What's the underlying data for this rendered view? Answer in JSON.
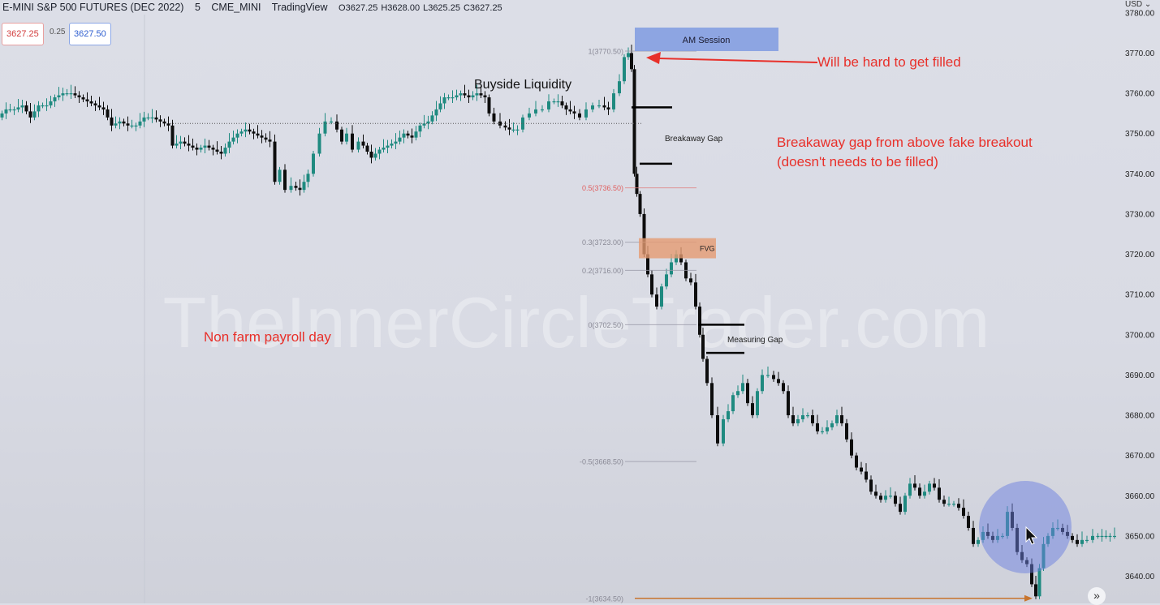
{
  "header": {
    "symbol": "E-MINI S&P 500 FUTURES (DEC 2022)",
    "interval": "5",
    "exchange": "CME_MINI",
    "source": "TradingView",
    "open": "O3627.25",
    "high": "H3628.00",
    "low": "L3625.25",
    "close": "C3627.25",
    "bid": "3627.25",
    "spread": "0.25",
    "ask": "3627.50",
    "currency": "USD"
  },
  "watermark": "TheInnerCircleTrader.com",
  "colors": {
    "up": "#1f8a80",
    "down": "#0d0d0d",
    "annotation": "#e8302a",
    "session": "#7f9be0",
    "fvg": "#e59b72",
    "fib": "#e08080",
    "target": "#c8752e"
  },
  "icons": {
    "expand": "double-chevron-right-icon",
    "cursor": "mouse-pointer-icon"
  },
  "chart_data": {
    "type": "candlestick",
    "y_axis": {
      "ticks": [
        3640,
        3650,
        3660,
        3670,
        3680,
        3690,
        3700,
        3710,
        3720,
        3730,
        3740,
        3750,
        3760,
        3770,
        3780
      ],
      "tick_labels": [
        "3640.00",
        "3650.00",
        "3660.00",
        "3670.00",
        "3680.00",
        "3690.00",
        "3700.00",
        "3710.00",
        "3720.00",
        "3730.00",
        "3740.00",
        "3750.00",
        "3760.00",
        "3770.00",
        "3780.00"
      ],
      "range": [
        3632,
        3782
      ]
    },
    "candle_path": [
      [
        0,
        3754
      ],
      [
        10,
        3756
      ],
      [
        20,
        3756
      ],
      [
        30,
        3757
      ],
      [
        40,
        3754
      ],
      [
        50,
        3757
      ],
      [
        60,
        3757
      ],
      [
        70,
        3759
      ],
      [
        80,
        3760
      ],
      [
        90,
        3760
      ],
      [
        100,
        3759
      ],
      [
        110,
        3758
      ],
      [
        120,
        3757
      ],
      [
        130,
        3756
      ],
      [
        140,
        3752
      ],
      [
        150,
        3753
      ],
      [
        160,
        3752
      ],
      [
        170,
        3752
      ],
      [
        180,
        3754
      ],
      [
        190,
        3754
      ],
      [
        200,
        3753
      ],
      [
        210,
        3752
      ],
      [
        215,
        3747
      ],
      [
        225,
        3748
      ],
      [
        235,
        3747
      ],
      [
        245,
        3746
      ],
      [
        255,
        3747
      ],
      [
        265,
        3746
      ],
      [
        275,
        3745
      ],
      [
        285,
        3748
      ],
      [
        295,
        3750
      ],
      [
        305,
        3751
      ],
      [
        315,
        3750
      ],
      [
        325,
        3749
      ],
      [
        335,
        3748
      ],
      [
        342,
        3738
      ],
      [
        347,
        3741
      ],
      [
        355,
        3736
      ],
      [
        362,
        3737
      ],
      [
        372,
        3736
      ],
      [
        382,
        3740
      ],
      [
        390,
        3745
      ],
      [
        397,
        3750
      ],
      [
        404,
        3753
      ],
      [
        412,
        3753
      ],
      [
        418,
        3751
      ],
      [
        424,
        3748
      ],
      [
        430,
        3750
      ],
      [
        438,
        3746
      ],
      [
        445,
        3748
      ],
      [
        450,
        3747
      ],
      [
        460,
        3744
      ],
      [
        470,
        3746
      ],
      [
        480,
        3747
      ],
      [
        490,
        3748
      ],
      [
        500,
        3750
      ],
      [
        510,
        3749
      ],
      [
        520,
        3752
      ],
      [
        530,
        3753
      ],
      [
        540,
        3756
      ],
      [
        550,
        3759
      ],
      [
        560,
        3759
      ],
      [
        570,
        3760
      ],
      [
        580,
        3759
      ],
      [
        590,
        3760
      ],
      [
        600,
        3759
      ],
      [
        605,
        3755
      ],
      [
        612,
        3753
      ],
      [
        620,
        3752
      ],
      [
        630,
        3751
      ],
      [
        640,
        3751
      ],
      [
        648,
        3754
      ],
      [
        656,
        3755
      ],
      [
        664,
        3756
      ],
      [
        672,
        3756
      ],
      [
        680,
        3758
      ],
      [
        690,
        3758
      ],
      [
        700,
        3756
      ],
      [
        710,
        3755
      ],
      [
        718,
        3754
      ],
      [
        726,
        3756
      ],
      [
        734,
        3757
      ],
      [
        742,
        3757
      ],
      [
        752,
        3756
      ],
      [
        760,
        3760
      ],
      [
        766,
        3763
      ],
      [
        772,
        3769
      ],
      [
        776,
        3770
      ],
      [
        780,
        3766
      ],
      [
        783,
        3740
      ],
      [
        786,
        3735
      ],
      [
        791,
        3730
      ],
      [
        796,
        3720
      ],
      [
        800,
        3715
      ],
      [
        806,
        3710
      ],
      [
        812,
        3707
      ],
      [
        818,
        3712
      ],
      [
        824,
        3715
      ],
      [
        830,
        3718
      ],
      [
        836,
        3720
      ],
      [
        842,
        3718
      ],
      [
        848,
        3714
      ],
      [
        854,
        3713
      ],
      [
        860,
        3707
      ],
      [
        864,
        3700
      ],
      [
        868,
        3694
      ],
      [
        874,
        3688
      ],
      [
        880,
        3680
      ],
      [
        888,
        3673
      ],
      [
        894,
        3679
      ],
      [
        900,
        3681
      ],
      [
        906,
        3685
      ],
      [
        912,
        3686
      ],
      [
        918,
        3688
      ],
      [
        924,
        3683
      ],
      [
        930,
        3680
      ],
      [
        936,
        3686
      ],
      [
        942,
        3690
      ],
      [
        950,
        3690
      ],
      [
        956,
        3689
      ],
      [
        962,
        3688
      ],
      [
        968,
        3686
      ],
      [
        974,
        3680
      ],
      [
        980,
        3678
      ],
      [
        986,
        3679
      ],
      [
        992,
        3680
      ],
      [
        998,
        3680
      ],
      [
        1004,
        3678
      ],
      [
        1010,
        3676
      ],
      [
        1016,
        3676
      ],
      [
        1022,
        3677
      ],
      [
        1028,
        3678
      ],
      [
        1034,
        3680
      ],
      [
        1040,
        3678
      ],
      [
        1046,
        3674
      ],
      [
        1052,
        3670
      ],
      [
        1058,
        3667
      ],
      [
        1064,
        3666
      ],
      [
        1070,
        3664
      ],
      [
        1076,
        3661
      ],
      [
        1082,
        3660
      ],
      [
        1088,
        3659
      ],
      [
        1094,
        3660
      ],
      [
        1100,
        3660
      ],
      [
        1106,
        3658
      ],
      [
        1112,
        3656
      ],
      [
        1118,
        3660
      ],
      [
        1124,
        3663
      ],
      [
        1130,
        3662
      ],
      [
        1136,
        3660
      ],
      [
        1142,
        3661
      ],
      [
        1148,
        3663
      ],
      [
        1154,
        3662
      ],
      [
        1160,
        3659
      ],
      [
        1166,
        3658
      ],
      [
        1172,
        3658
      ],
      [
        1178,
        3658
      ],
      [
        1184,
        3657
      ],
      [
        1190,
        3655
      ],
      [
        1196,
        3652
      ],
      [
        1202,
        3648
      ],
      [
        1208,
        3649
      ],
      [
        1214,
        3651
      ],
      [
        1220,
        3650
      ],
      [
        1226,
        3649
      ],
      [
        1232,
        3650
      ],
      [
        1238,
        3650
      ],
      [
        1244,
        3656
      ],
      [
        1250,
        3652
      ],
      [
        1256,
        3646
      ],
      [
        1262,
        3644
      ],
      [
        1268,
        3643
      ],
      [
        1274,
        3638
      ],
      [
        1278,
        3635
      ],
      [
        1283,
        3642
      ],
      [
        1288,
        3648
      ],
      [
        1294,
        3650
      ],
      [
        1300,
        3652
      ],
      [
        1306,
        3652
      ],
      [
        1312,
        3651
      ],
      [
        1318,
        3650
      ],
      [
        1324,
        3649
      ],
      [
        1330,
        3648
      ],
      [
        1336,
        3649
      ],
      [
        1342,
        3649
      ],
      [
        1350,
        3650
      ],
      [
        1360,
        3650
      ],
      [
        1370,
        3650
      ],
      [
        1376,
        3650
      ]
    ],
    "fib_levels": [
      {
        "label": "1(3770.50)",
        "value": 3770.5
      },
      {
        "label": "0.5(3736.50)",
        "value": 3736.5
      },
      {
        "label": "0.3(3723.00)",
        "value": 3723.0
      },
      {
        "label": "0.2(3716.00)",
        "value": 3716.0
      },
      {
        "label": "0(3702.50)",
        "value": 3702.5
      },
      {
        "label": "-0.5(3668.50)",
        "value": 3668.5
      },
      {
        "label": "-1(3634.50)",
        "value": 3634.5
      }
    ],
    "zones": {
      "am_session": {
        "label": "AM Session"
      },
      "fvg": {
        "label": "FVG",
        "low": 3719.0,
        "high": 3724.0
      }
    },
    "gaps": {
      "breakaway": {
        "label": "Breakaway Gap",
        "levels": [
          3756.5,
          3742.5
        ]
      },
      "measuring": {
        "label": "Measuring Gap",
        "levels": [
          3702.5,
          3695.5
        ]
      }
    },
    "buyside_level": 3752.5,
    "annotations": {
      "buyside": "Buyside Liquidity",
      "hard_fill": "Will be hard to get filled",
      "breakaway_note_1": "Breakaway gap from above fake breakout",
      "breakaway_note_2": "(doesn't needs to be filled)",
      "nfp": "Non farm payroll day"
    }
  }
}
